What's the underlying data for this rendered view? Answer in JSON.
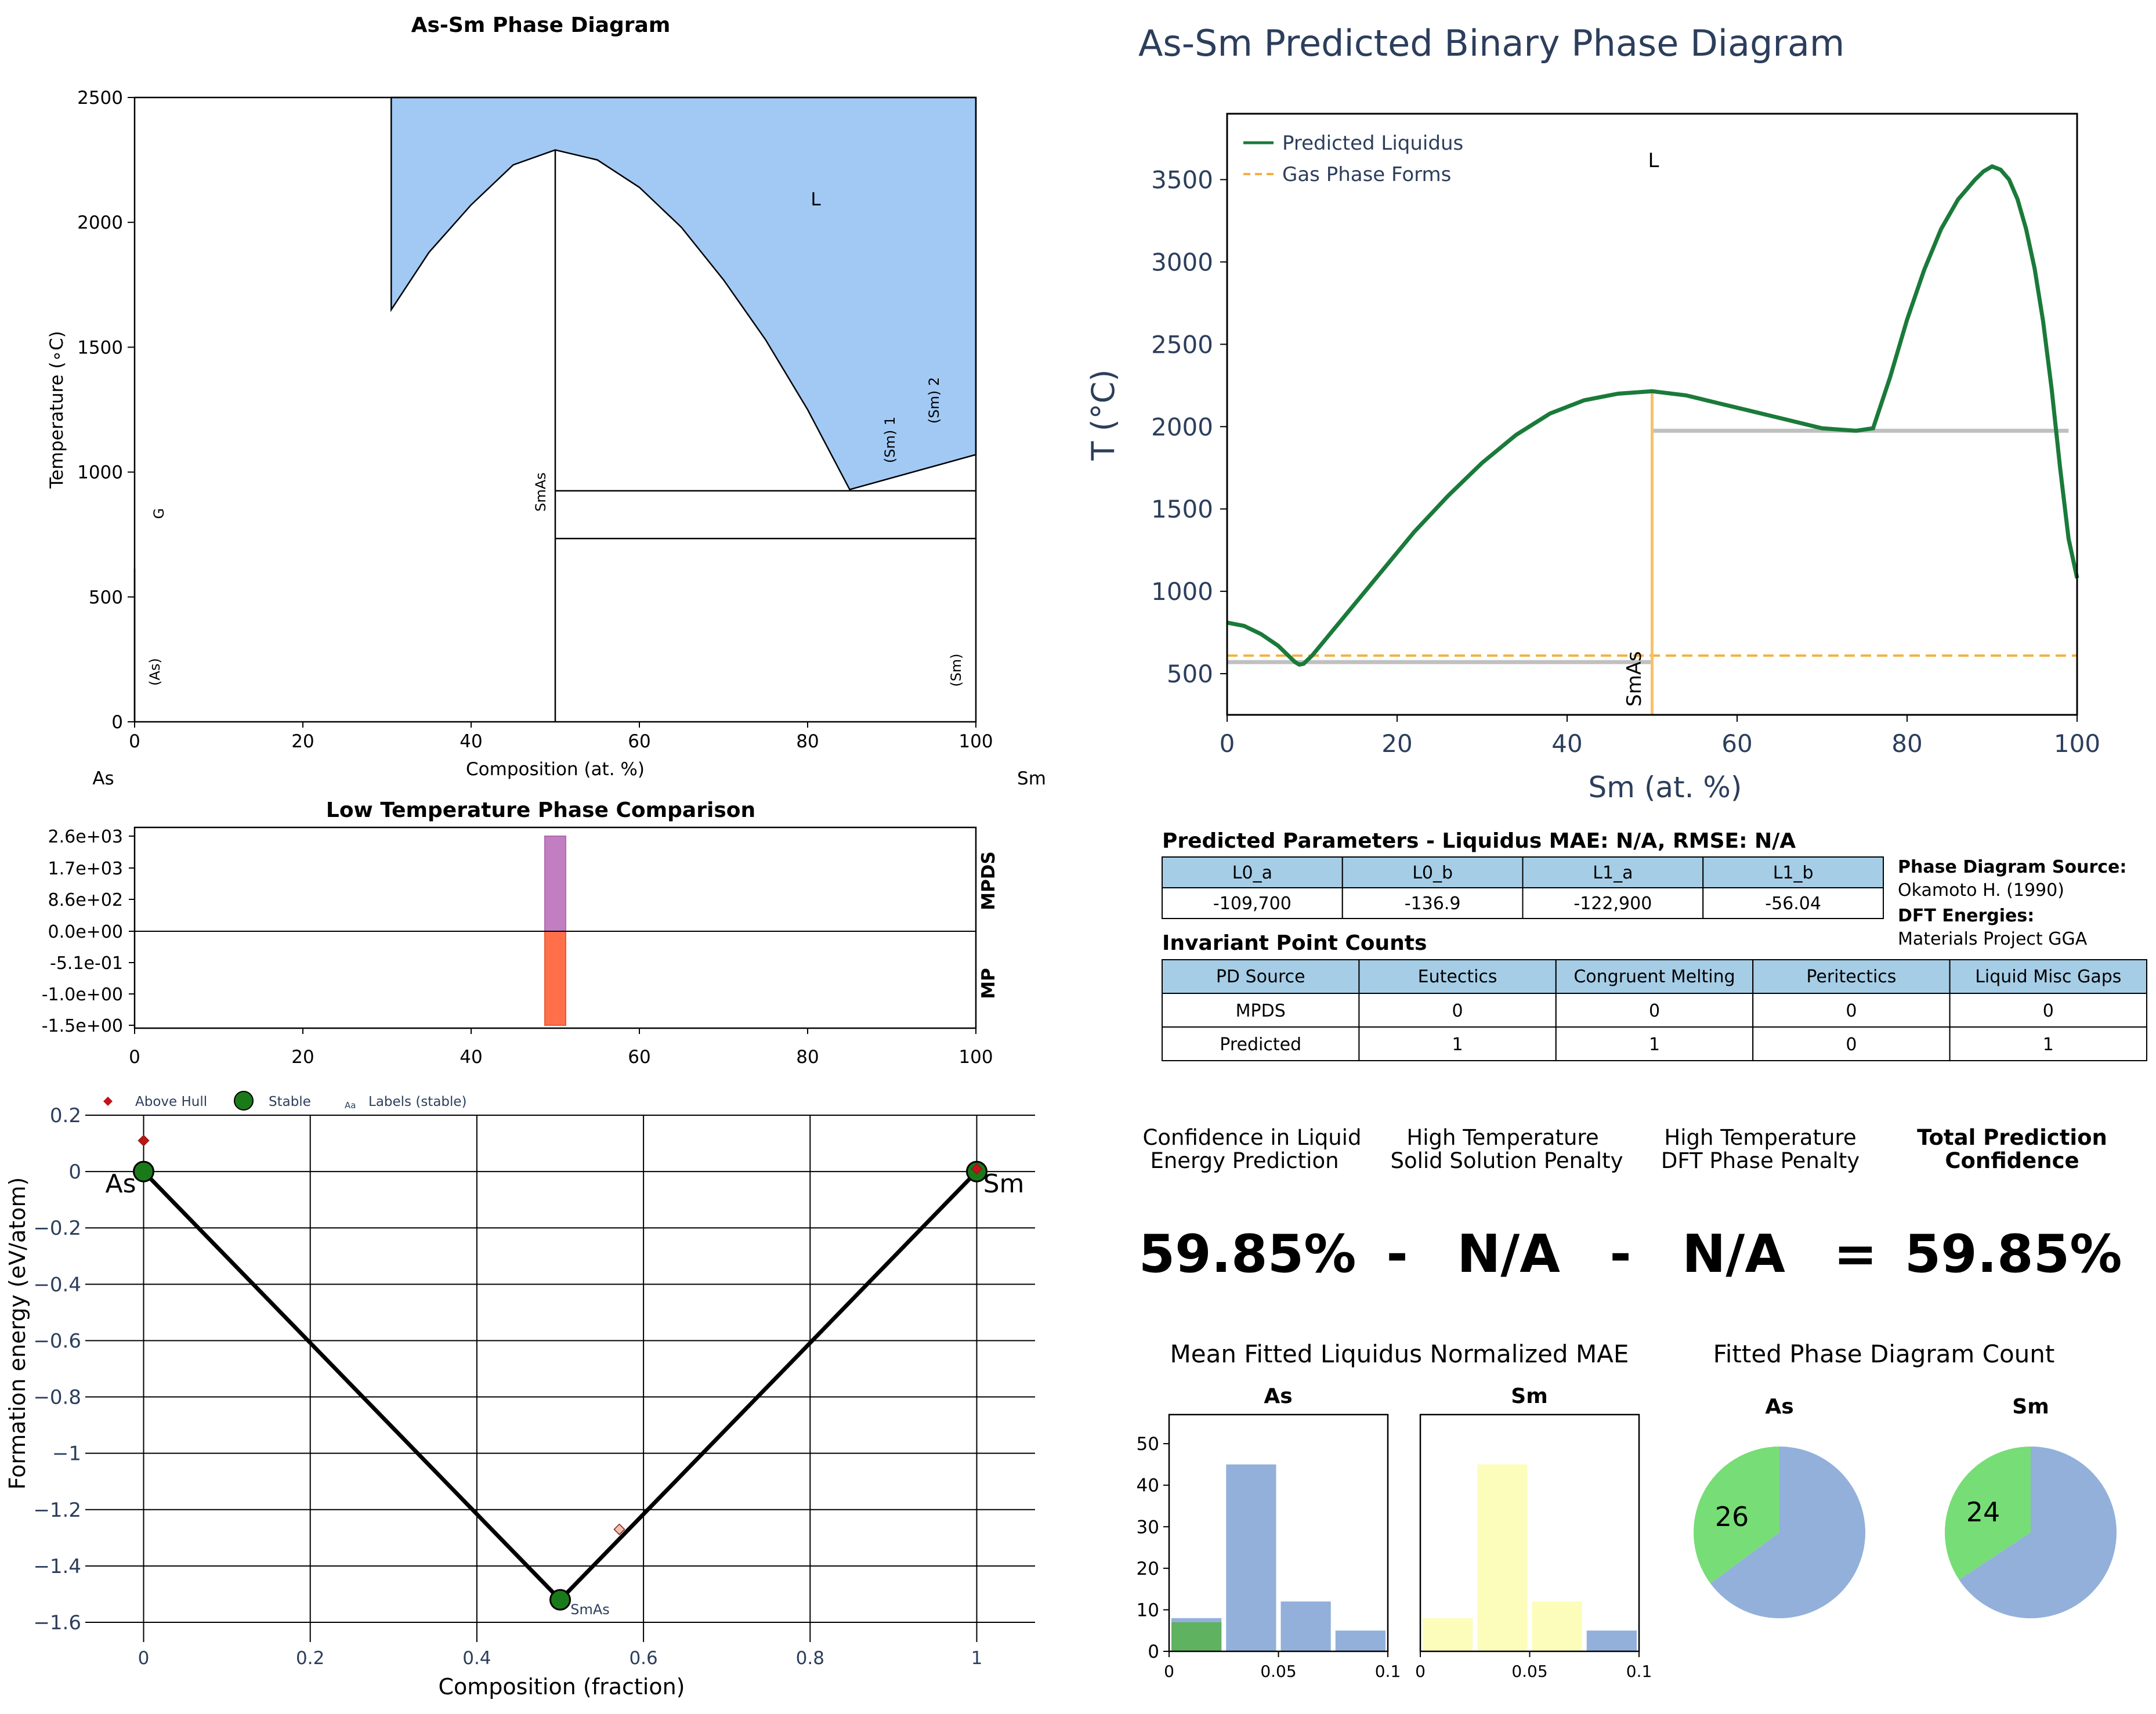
{
  "phase_diagram": {
    "title": "As-Sm Phase Diagram",
    "xlabel": "Composition (at. %)",
    "ylabel": "Temperature (∘C)",
    "left_element": "As",
    "right_element": "Sm",
    "x_ticks": [
      "0",
      "20",
      "40",
      "60",
      "80",
      "100"
    ],
    "y_ticks": [
      "0",
      "500",
      "1000",
      "1500",
      "2000",
      "2500"
    ],
    "region_labels": {
      "L": "L",
      "G": "G",
      "As": "(As)",
      "SmAs": "SmAs",
      "Sm1": "(Sm) 1",
      "Sm2": "(Sm) 2",
      "Sm": "(Sm)"
    },
    "liquid_color": "#a1c9f4"
  },
  "low_temp": {
    "title": "Low Temperature Phase Comparison",
    "y_ticks": [
      "2.6e+03",
      "1.7e+03",
      "8.6e+02",
      "0.0e+00",
      "-5.1e-01",
      "-1.0e+00",
      "-1.5e+00"
    ],
    "x_ticks": [
      "0",
      "20",
      "40",
      "60",
      "80",
      "100"
    ],
    "label_top": "MPDS",
    "label_bottom": "MP",
    "mpds_color": "#c17fc1",
    "mp_color": "#ff6f4a"
  },
  "hull": {
    "legend": {
      "above": "Above Hull",
      "stable": "Stable",
      "labels": "Labels (stable)",
      "labels_glyph": "Aa"
    },
    "xlabel": "Composition (fraction)",
    "ylabel": "Formation energy (eV/atom)",
    "x_ticks": [
      "0",
      "0.2",
      "0.4",
      "0.6",
      "0.8",
      "1"
    ],
    "y_ticks": [
      "0.2",
      "0",
      "−0.2",
      "−0.4",
      "−0.6",
      "−0.8",
      "−1",
      "−1.2",
      "−1.4",
      "−1.6"
    ],
    "point_labels": {
      "As": "As",
      "Sm": "Sm",
      "SmAs": "SmAs"
    }
  },
  "predicted": {
    "title": "As-Sm Predicted Binary Phase Diagram",
    "xlabel": "Sm (at. %)",
    "ylabel": "T (°C)",
    "x_ticks": [
      "0",
      "20",
      "40",
      "60",
      "80",
      "100"
    ],
    "y_ticks": [
      "500",
      "1000",
      "1500",
      "2000",
      "2500",
      "3000",
      "3500"
    ],
    "legend_liquidus": "Predicted Liquidus",
    "legend_gas": "Gas Phase Forms",
    "label_L": "L",
    "label_SmAs": "SmAs",
    "liquidus_color": "#1a7a3a",
    "gas_color": "#f5b041",
    "title_color": "#2c3e5c"
  },
  "parameters": {
    "title": "Predicted Parameters - Liquidus MAE: N/A, RMSE: N/A",
    "headers": [
      "L0_a",
      "L0_b",
      "L1_a",
      "L1_b"
    ],
    "values": [
      "-109,700",
      "-136.9",
      "-122,900",
      "-56.04"
    ]
  },
  "source": {
    "pd_label": "Phase Diagram Source:",
    "pd_value": "Okamoto H. (1990)",
    "dft_label": "DFT Energies:",
    "dft_value": "Materials Project GGA"
  },
  "invariant": {
    "title": "Invariant Point Counts",
    "headers": [
      "PD Source",
      "Eutectics",
      "Congruent Melting",
      "Peritectics",
      "Liquid Misc Gaps"
    ],
    "rows": [
      [
        "MPDS",
        "0",
        "0",
        "0",
        "0"
      ],
      [
        "Predicted",
        "1",
        "1",
        "0",
        "1"
      ]
    ]
  },
  "confidence": {
    "h1a": "Confidence in Liquid",
    "h1b": "Energy Prediction",
    "h2a": "High Temperature",
    "h2b": "Solid Solution Penalty",
    "h3a": "High Temperature",
    "h3b": "DFT Phase Penalty",
    "h4a": "Total Prediction",
    "h4b": "Confidence",
    "v1": "59.85%",
    "op1": "-",
    "v2": "N/A",
    "op2": "-",
    "v3": "N/A",
    "op3": "=",
    "v4": "59.85%"
  },
  "mae": {
    "title": "Mean Fitted Liquidus Normalized MAE",
    "left_title": "As",
    "right_title": "Sm",
    "y_ticks": [
      "0",
      "10",
      "20",
      "30",
      "40",
      "50"
    ],
    "x_ticks": [
      "0",
      "0.05",
      "0.1"
    ]
  },
  "counts": {
    "title": "Fitted Phase Diagram Count",
    "left_title": "As",
    "right_title": "Sm",
    "left_value": "26",
    "right_value": "24"
  },
  "chart_data": [
    {
      "type": "area",
      "title": "As-Sm Phase Diagram",
      "xlabel": "Composition (at. %)",
      "ylabel": "Temperature (∘C)",
      "xlim": [
        0,
        100
      ],
      "ylim": [
        0,
        2500
      ],
      "liquid_region_boundary": {
        "x": [
          30.5,
          30.5,
          100,
          100,
          85,
          80,
          75,
          70,
          65,
          60,
          55,
          50,
          45,
          40,
          35,
          30.5
        ],
        "y": [
          1650,
          2500,
          2500,
          1070,
          930,
          1250,
          1530,
          1770,
          1980,
          2140,
          2250,
          2290,
          2230,
          2070,
          1880,
          1650
        ]
      },
      "phase_lines": [
        {
          "name": "SmAs",
          "x": [
            50,
            50
          ],
          "y": [
            0,
            2290
          ]
        },
        {
          "name": "upper horizontal",
          "x": [
            50,
            100
          ],
          "y": [
            925,
            925
          ]
        },
        {
          "name": "lower horizontal",
          "x": [
            50,
            100
          ],
          "y": [
            734,
            734
          ]
        },
        {
          "name": "As edge",
          "x": [
            0,
            0
          ],
          "y": [
            0,
            614
          ]
        }
      ]
    },
    {
      "type": "bar",
      "title": "Low Temperature Phase Comparison",
      "series": [
        {
          "name": "MPDS",
          "x": [
            50
          ],
          "values": [
            2600
          ]
        },
        {
          "name": "MP",
          "x": [
            50
          ],
          "values": [
            -1.52
          ]
        }
      ],
      "xlim": [
        0,
        100
      ]
    },
    {
      "type": "scatter",
      "xlabel": "Composition (fraction)",
      "ylabel": "Formation energy (eV/atom)",
      "xlim": [
        -0.07,
        1.07
      ],
      "ylim": [
        -1.6,
        0.2
      ],
      "series": [
        {
          "name": "Stable",
          "x": [
            0,
            0.5,
            1
          ],
          "values": [
            0,
            -1.52,
            0
          ]
        },
        {
          "name": "Above Hull",
          "x": [
            0,
            0.571,
            1
          ],
          "values": [
            0.11,
            -1.27,
            0.01
          ]
        }
      ],
      "hull_line": {
        "x": [
          0,
          0.5,
          1
        ],
        "y": [
          0,
          -1.52,
          0
        ]
      }
    },
    {
      "type": "line",
      "title": "As-Sm Predicted Binary Phase Diagram",
      "xlabel": "Sm (at. %)",
      "ylabel": "T (°C)",
      "xlim": [
        0,
        100
      ],
      "ylim": [
        250,
        3900
      ],
      "series": [
        {
          "name": "Predicted Liquidus",
          "x": [
            0,
            2,
            4,
            6,
            8,
            8.5,
            9,
            10,
            14,
            18,
            22,
            26,
            30,
            34,
            38,
            42,
            46,
            50,
            54,
            58,
            62,
            66,
            70,
            74,
            76,
            78,
            80,
            82,
            84,
            86,
            88,
            89,
            90,
            91,
            92,
            93,
            94,
            95,
            96,
            97,
            98,
            99,
            100
          ],
          "values": [
            810,
            790,
            740,
            670,
            570,
            555,
            560,
            610,
            860,
            1110,
            1360,
            1580,
            1780,
            1950,
            2080,
            2160,
            2200,
            2215,
            2190,
            2140,
            2090,
            2040,
            1990,
            1975,
            1990,
            2300,
            2650,
            2950,
            3200,
            3380,
            3500,
            3550,
            3580,
            3560,
            3500,
            3380,
            3200,
            2960,
            2640,
            2230,
            1750,
            1320,
            1080
          ]
        },
        {
          "name": "Gas Phase Forms",
          "x": [
            0,
            100
          ],
          "values": [
            610,
            610
          ]
        }
      ],
      "phase_lines": [
        {
          "name": "SmAs",
          "x": [
            50,
            50
          ],
          "y": [
            250,
            2215
          ]
        },
        {
          "name": "left solidus",
          "x": [
            0,
            50
          ],
          "y": [
            570,
            570
          ]
        },
        {
          "name": "right solidus",
          "x": [
            50,
            99
          ],
          "y": [
            1975,
            1975
          ]
        }
      ]
    },
    {
      "type": "bar",
      "title": "As",
      "series": [
        {
          "name": "As bins",
          "x": [
            0.0125,
            0.0375,
            0.0625,
            0.0875
          ],
          "values": [
            8,
            45,
            12,
            5
          ]
        },
        {
          "name": "As highlight",
          "x": [
            0.0125
          ],
          "values": [
            7
          ]
        }
      ],
      "xlim": [
        0,
        0.1
      ],
      "ylim": [
        0,
        57
      ]
    },
    {
      "type": "bar",
      "title": "Sm",
      "series": [
        {
          "name": "Sm bins",
          "x": [
            0.0125,
            0.0375,
            0.0625,
            0.0875
          ],
          "values": [
            8,
            45,
            12,
            5
          ]
        }
      ],
      "xlim": [
        0,
        0.1
      ],
      "ylim": [
        0,
        57
      ]
    },
    {
      "type": "pie",
      "title": "As",
      "values": [
        26,
        48
      ]
    },
    {
      "type": "pie",
      "title": "Sm",
      "values": [
        24,
        46
      ]
    }
  ]
}
